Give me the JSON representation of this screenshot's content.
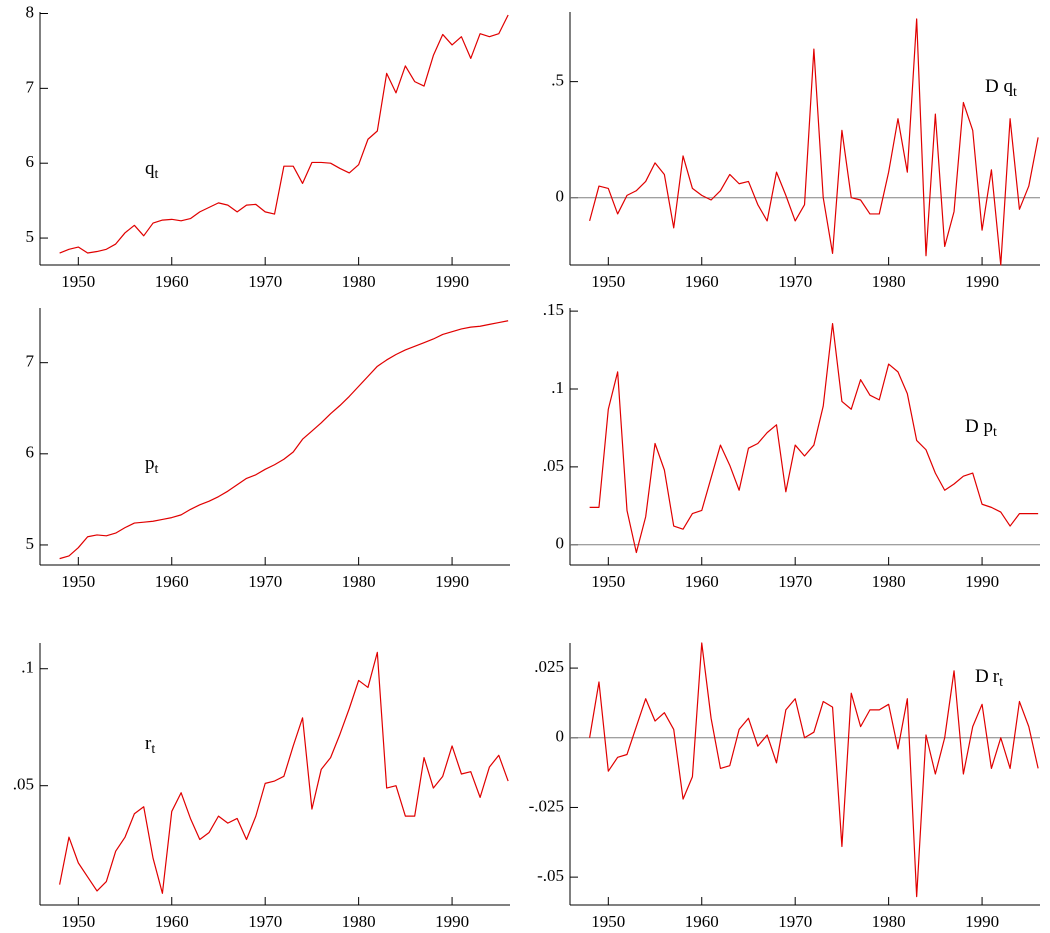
{
  "chart_data": [
    {
      "type": "line",
      "annotation": "q",
      "annotation_sub": "t",
      "color": "#e00000",
      "x": [
        1948,
        1949,
        1950,
        1951,
        1952,
        1953,
        1954,
        1955,
        1956,
        1957,
        1958,
        1959,
        1960,
        1961,
        1962,
        1963,
        1964,
        1965,
        1966,
        1967,
        1968,
        1969,
        1970,
        1971,
        1972,
        1973,
        1974,
        1975,
        1976,
        1977,
        1978,
        1979,
        1980,
        1981,
        1982,
        1983,
        1984,
        1985,
        1986,
        1987,
        1988,
        1989,
        1990,
        1991,
        1992,
        1993,
        1994,
        1995,
        1996
      ],
      "values": [
        4.8,
        4.85,
        4.88,
        4.8,
        4.82,
        4.85,
        4.92,
        5.07,
        5.17,
        5.03,
        5.2,
        5.24,
        5.25,
        5.23,
        5.26,
        5.35,
        5.41,
        5.47,
        5.44,
        5.35,
        5.44,
        5.45,
        5.35,
        5.32,
        5.96,
        5.96,
        5.73,
        6.01,
        6.01,
        6.0,
        5.93,
        5.87,
        5.98,
        6.32,
        6.43,
        7.2,
        6.94,
        7.3,
        7.09,
        7.03,
        7.44,
        7.72,
        7.58,
        7.69,
        7.4,
        7.73,
        7.69,
        7.73,
        7.98
      ],
      "xlim": [
        1945.9,
        1996.2
      ],
      "xticks": [
        1950,
        1960,
        1970,
        1980,
        1990
      ],
      "ylim": [
        4.64,
        8.02
      ],
      "yticks": [
        5,
        6,
        7,
        8
      ]
    },
    {
      "type": "line",
      "annotation": "D q",
      "annotation_sub": "t",
      "color": "#e00000",
      "zero_line": true,
      "x": [
        1948,
        1949,
        1950,
        1951,
        1952,
        1953,
        1954,
        1955,
        1956,
        1957,
        1958,
        1959,
        1960,
        1961,
        1962,
        1963,
        1964,
        1965,
        1966,
        1967,
        1968,
        1969,
        1970,
        1971,
        1972,
        1973,
        1974,
        1975,
        1976,
        1977,
        1978,
        1979,
        1980,
        1981,
        1982,
        1983,
        1984,
        1985,
        1986,
        1987,
        1988,
        1989,
        1990,
        1991,
        1992,
        1993,
        1994,
        1995,
        1996
      ],
      "values": [
        -0.1,
        0.05,
        0.04,
        -0.07,
        0.01,
        0.03,
        0.07,
        0.15,
        0.1,
        -0.13,
        0.18,
        0.04,
        0.01,
        -0.01,
        0.03,
        0.1,
        0.06,
        0.07,
        -0.03,
        -0.1,
        0.11,
        0.01,
        -0.1,
        -0.03,
        0.64,
        0.0,
        -0.24,
        0.29,
        0.0,
        -0.01,
        -0.07,
        -0.07,
        0.11,
        0.34,
        0.11,
        0.77,
        -0.25,
        0.36,
        -0.21,
        -0.06,
        0.41,
        0.29,
        -0.14,
        0.12,
        -0.29,
        0.34,
        -0.05,
        0.05,
        0.26
      ],
      "xlim": [
        1945.9,
        1996.2
      ],
      "xticks": [
        1950,
        1960,
        1970,
        1980,
        1990
      ],
      "ylim": [
        -0.29,
        0.8
      ],
      "yticks": [
        0,
        {
          "value": 0.5,
          "label": ".5"
        }
      ]
    },
    {
      "type": "line",
      "annotation": "p",
      "annotation_sub": "t",
      "color": "#e00000",
      "x": [
        1948,
        1949,
        1950,
        1951,
        1952,
        1953,
        1954,
        1955,
        1956,
        1957,
        1958,
        1959,
        1960,
        1961,
        1962,
        1963,
        1964,
        1965,
        1966,
        1967,
        1968,
        1969,
        1970,
        1971,
        1972,
        1973,
        1974,
        1975,
        1976,
        1977,
        1978,
        1979,
        1980,
        1981,
        1982,
        1983,
        1984,
        1985,
        1986,
        1987,
        1988,
        1989,
        1990,
        1991,
        1992,
        1993,
        1994,
        1995,
        1996
      ],
      "values": [
        4.85,
        4.88,
        4.97,
        5.09,
        5.11,
        5.1,
        5.13,
        5.19,
        5.24,
        5.25,
        5.26,
        5.28,
        5.3,
        5.33,
        5.39,
        5.44,
        5.48,
        5.53,
        5.59,
        5.66,
        5.73,
        5.77,
        5.83,
        5.88,
        5.94,
        6.02,
        6.16,
        6.25,
        6.34,
        6.44,
        6.53,
        6.63,
        6.74,
        6.85,
        6.96,
        7.03,
        7.09,
        7.14,
        7.18,
        7.22,
        7.26,
        7.31,
        7.34,
        7.37,
        7.39,
        7.4,
        7.42,
        7.44,
        7.46
      ],
      "xlim": [
        1945.9,
        1996.2
      ],
      "xticks": [
        1950,
        1960,
        1970,
        1980,
        1990
      ],
      "ylim": [
        4.78,
        7.6
      ],
      "yticks": [
        5,
        6,
        7
      ]
    },
    {
      "type": "line",
      "annotation": "D p",
      "annotation_sub": "t",
      "color": "#e00000",
      "zero_line": true,
      "x": [
        1948,
        1949,
        1950,
        1951,
        1952,
        1953,
        1954,
        1955,
        1956,
        1957,
        1958,
        1959,
        1960,
        1961,
        1962,
        1963,
        1964,
        1965,
        1966,
        1967,
        1968,
        1969,
        1970,
        1971,
        1972,
        1973,
        1974,
        1975,
        1976,
        1977,
        1978,
        1979,
        1980,
        1981,
        1982,
        1983,
        1984,
        1985,
        1986,
        1987,
        1988,
        1989,
        1990,
        1991,
        1992,
        1993,
        1994,
        1995,
        1996
      ],
      "values": [
        0.024,
        0.024,
        0.087,
        0.111,
        0.022,
        -0.005,
        0.018,
        0.065,
        0.048,
        0.012,
        0.01,
        0.02,
        0.022,
        0.043,
        0.064,
        0.051,
        0.035,
        0.062,
        0.065,
        0.072,
        0.077,
        0.034,
        0.064,
        0.057,
        0.064,
        0.089,
        0.142,
        0.092,
        0.087,
        0.106,
        0.096,
        0.093,
        0.116,
        0.111,
        0.097,
        0.067,
        0.061,
        0.046,
        0.035,
        0.039,
        0.044,
        0.046,
        0.026,
        0.024,
        0.021,
        0.012,
        0.02,
        0.02,
        0.02
      ],
      "xlim": [
        1945.9,
        1996.2
      ],
      "xticks": [
        1950,
        1960,
        1970,
        1980,
        1990
      ],
      "ylim": [
        -0.013,
        0.152
      ],
      "yticks": [
        0,
        {
          "value": 0.05,
          "label": ".05"
        },
        {
          "value": 0.1,
          "label": ".1"
        },
        {
          "value": 0.15,
          "label": ".15"
        }
      ]
    },
    {
      "type": "line",
      "annotation": "r",
      "annotation_sub": "t",
      "color": "#e00000",
      "x": [
        1948,
        1949,
        1950,
        1951,
        1952,
        1953,
        1954,
        1955,
        1956,
        1957,
        1958,
        1959,
        1960,
        1961,
        1962,
        1963,
        1964,
        1965,
        1966,
        1967,
        1968,
        1969,
        1970,
        1971,
        1972,
        1973,
        1974,
        1975,
        1976,
        1977,
        1978,
        1979,
        1980,
        1981,
        1982,
        1983,
        1984,
        1985,
        1986,
        1987,
        1988,
        1989,
        1990,
        1991,
        1992,
        1993,
        1994,
        1995,
        1996
      ],
      "values": [
        0.0077,
        0.028,
        0.017,
        0.011,
        0.005,
        0.009,
        0.022,
        0.028,
        0.038,
        0.041,
        0.019,
        0.004,
        0.039,
        0.047,
        0.036,
        0.027,
        0.03,
        0.037,
        0.034,
        0.036,
        0.027,
        0.037,
        0.051,
        0.052,
        0.054,
        0.067,
        0.079,
        0.04,
        0.057,
        0.062,
        0.072,
        0.083,
        0.095,
        0.092,
        0.107,
        0.049,
        0.05,
        0.037,
        0.037,
        0.062,
        0.049,
        0.054,
        0.067,
        0.055,
        0.056,
        0.045,
        0.058,
        0.063,
        0.052
      ],
      "xlim": [
        1945.9,
        1996.2
      ],
      "xticks": [
        1950,
        1960,
        1970,
        1980,
        1990
      ],
      "ylim": [
        -0.001,
        0.111
      ],
      "yticks": [
        {
          "value": 0.05,
          "label": ".05"
        },
        {
          "value": 0.1,
          "label": ".1"
        }
      ]
    },
    {
      "type": "line",
      "annotation": "D",
      "annotation_sub": "t",
      "annotation_main2": "r",
      "color": "#e00000",
      "zero_line": true,
      "x": [
        1948,
        1949,
        1950,
        1951,
        1952,
        1953,
        1954,
        1955,
        1956,
        1957,
        1958,
        1959,
        1960,
        1961,
        1962,
        1963,
        1964,
        1965,
        1966,
        1967,
        1968,
        1969,
        1970,
        1971,
        1972,
        1973,
        1974,
        1975,
        1976,
        1977,
        1978,
        1979,
        1980,
        1981,
        1982,
        1983,
        1984,
        1985,
        1986,
        1987,
        1988,
        1989,
        1990,
        1991,
        1992,
        1993,
        1994,
        1995,
        1996
      ],
      "values": [
        0.0,
        0.02,
        -0.012,
        -0.007,
        -0.006,
        0.004,
        0.014,
        0.006,
        0.009,
        0.003,
        -0.022,
        -0.014,
        0.034,
        0.007,
        -0.011,
        -0.01,
        0.003,
        0.007,
        -0.003,
        0.001,
        -0.009,
        0.01,
        0.014,
        0.0,
        0.002,
        0.013,
        0.011,
        -0.039,
        0.016,
        0.004,
        0.01,
        0.01,
        0.012,
        -0.004,
        0.014,
        -0.057,
        0.001,
        -0.013,
        0.0,
        0.024,
        -0.013,
        0.004,
        0.012,
        -0.011,
        0.0,
        -0.011,
        0.013,
        0.004,
        -0.011
      ],
      "xlim": [
        1945.9,
        1996.2
      ],
      "xticks": [
        1950,
        1960,
        1970,
        1980,
        1990
      ],
      "ylim": [
        -0.06,
        0.034
      ],
      "yticks": [
        {
          "value": -0.05,
          "label": "-.05"
        },
        {
          "value": -0.025,
          "label": "-.025"
        },
        0,
        {
          "value": 0.025,
          "label": ".025"
        }
      ]
    }
  ]
}
